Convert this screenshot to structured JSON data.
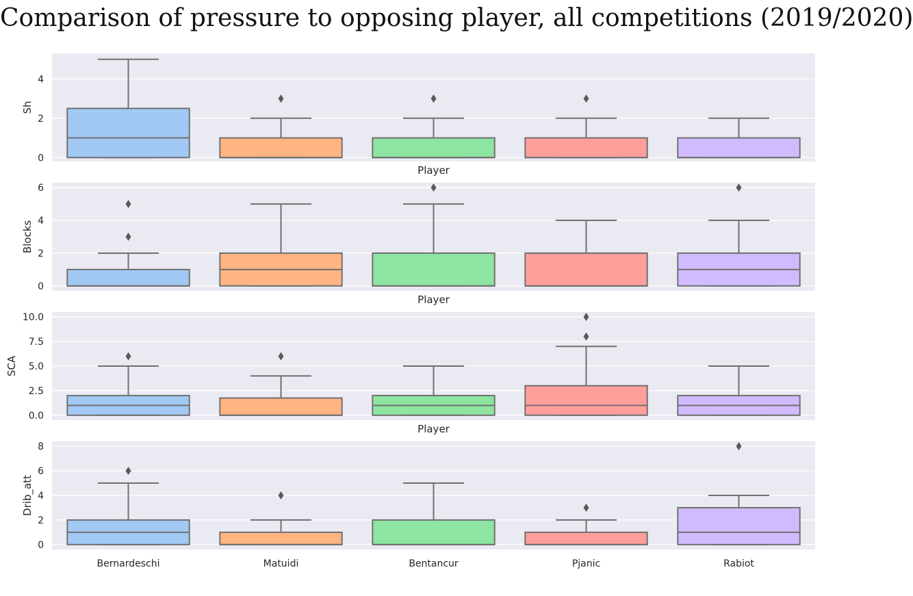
{
  "title": "Comparison of pressure to opposing player, all competitions (2019/2020)",
  "colors": {
    "background": "#eaeaf2",
    "grid": "#ffffff",
    "edge": "#707070",
    "players": [
      "#a1c9f4",
      "#ffb482",
      "#8de5a1",
      "#ff9f9b",
      "#d0bbff"
    ]
  },
  "chart_data": [
    {
      "type": "box",
      "metric": "Sh",
      "ylabel": "Sh",
      "xlabel": "Player",
      "ylim": [
        -0.2,
        5.3
      ],
      "yticks": [
        0,
        2,
        4
      ],
      "ytick_labels": [
        "0",
        "2",
        "4"
      ],
      "categories": [
        "Bernardeschi",
        "Matuidi",
        "Bentancur",
        "Pjanic",
        "Rabiot"
      ],
      "boxes": [
        {
          "min": 0,
          "q1": 0,
          "median": 1,
          "q3": 2.5,
          "max": 5,
          "outliers": []
        },
        {
          "min": 0,
          "q1": 0,
          "median": 0,
          "q3": 1,
          "max": 2,
          "outliers": [
            3
          ]
        },
        {
          "min": 0,
          "q1": 0,
          "median": 0,
          "q3": 1,
          "max": 2,
          "outliers": [
            3
          ]
        },
        {
          "min": 0,
          "q1": 0,
          "median": 0,
          "q3": 1,
          "max": 2,
          "outliers": [
            3
          ]
        },
        {
          "min": 0,
          "q1": 0,
          "median": 0,
          "q3": 1,
          "max": 2,
          "outliers": []
        }
      ]
    },
    {
      "type": "box",
      "metric": "Blocks",
      "ylabel": "Blocks",
      "xlabel": "Player",
      "ylim": [
        -0.3,
        6.3
      ],
      "yticks": [
        0,
        2,
        4,
        6
      ],
      "ytick_labels": [
        "0",
        "2",
        "4",
        "6"
      ],
      "categories": [
        "Bernardeschi",
        "Matuidi",
        "Bentancur",
        "Pjanic",
        "Rabiot"
      ],
      "boxes": [
        {
          "min": 0,
          "q1": 0,
          "median": 0,
          "q3": 1,
          "max": 2,
          "outliers": [
            3,
            5
          ]
        },
        {
          "min": 0,
          "q1": 0,
          "median": 1,
          "q3": 2,
          "max": 5,
          "outliers": []
        },
        {
          "min": 0,
          "q1": 0,
          "median": 0,
          "q3": 2,
          "max": 5,
          "outliers": [
            6
          ]
        },
        {
          "min": 0,
          "q1": 0,
          "median": 0,
          "q3": 2,
          "max": 4,
          "outliers": []
        },
        {
          "min": 0,
          "q1": 0,
          "median": 1,
          "q3": 2,
          "max": 4,
          "outliers": [
            6
          ]
        }
      ]
    },
    {
      "type": "box",
      "metric": "SCA",
      "ylabel": "SCA",
      "xlabel": "Player",
      "ylim": [
        -0.5,
        10.5
      ],
      "yticks": [
        0,
        2.5,
        5,
        7.5,
        10
      ],
      "ytick_labels": [
        "0.0",
        "2.5",
        "5.0",
        "7.5",
        "10.0"
      ],
      "categories": [
        "Bernardeschi",
        "Matuidi",
        "Bentancur",
        "Pjanic",
        "Rabiot"
      ],
      "boxes": [
        {
          "min": 0,
          "q1": 0,
          "median": 1,
          "q3": 2,
          "max": 5,
          "outliers": [
            6
          ]
        },
        {
          "min": 0,
          "q1": 0,
          "median": 0,
          "q3": 1.75,
          "max": 4,
          "outliers": [
            6
          ]
        },
        {
          "min": 0,
          "q1": 0,
          "median": 1,
          "q3": 2,
          "max": 5,
          "outliers": []
        },
        {
          "min": 0,
          "q1": 0,
          "median": 1,
          "q3": 3,
          "max": 7,
          "outliers": [
            8,
            10
          ]
        },
        {
          "min": 0,
          "q1": 0,
          "median": 1,
          "q3": 2,
          "max": 5,
          "outliers": []
        }
      ]
    },
    {
      "type": "box",
      "metric": "Drib_att",
      "ylabel": "Drib_att",
      "xlabel": "",
      "ylim": [
        -0.4,
        8.4
      ],
      "yticks": [
        0,
        2,
        4,
        6,
        8
      ],
      "ytick_labels": [
        "0",
        "2",
        "4",
        "6",
        "8"
      ],
      "categories": [
        "Bernardeschi",
        "Matuidi",
        "Bentancur",
        "Pjanic",
        "Rabiot"
      ],
      "show_category_labels": true,
      "boxes": [
        {
          "min": 0,
          "q1": 0,
          "median": 1,
          "q3": 2,
          "max": 5,
          "outliers": [
            6
          ]
        },
        {
          "min": 0,
          "q1": 0,
          "median": 0,
          "q3": 1,
          "max": 2,
          "outliers": [
            4
          ]
        },
        {
          "min": 0,
          "q1": 0,
          "median": 0,
          "q3": 2,
          "max": 5,
          "outliers": []
        },
        {
          "min": 0,
          "q1": 0,
          "median": 0,
          "q3": 1,
          "max": 2,
          "outliers": [
            3
          ]
        },
        {
          "min": 0,
          "q1": 0,
          "median": 1,
          "q3": 3,
          "max": 4,
          "outliers": [
            8
          ]
        }
      ]
    }
  ]
}
